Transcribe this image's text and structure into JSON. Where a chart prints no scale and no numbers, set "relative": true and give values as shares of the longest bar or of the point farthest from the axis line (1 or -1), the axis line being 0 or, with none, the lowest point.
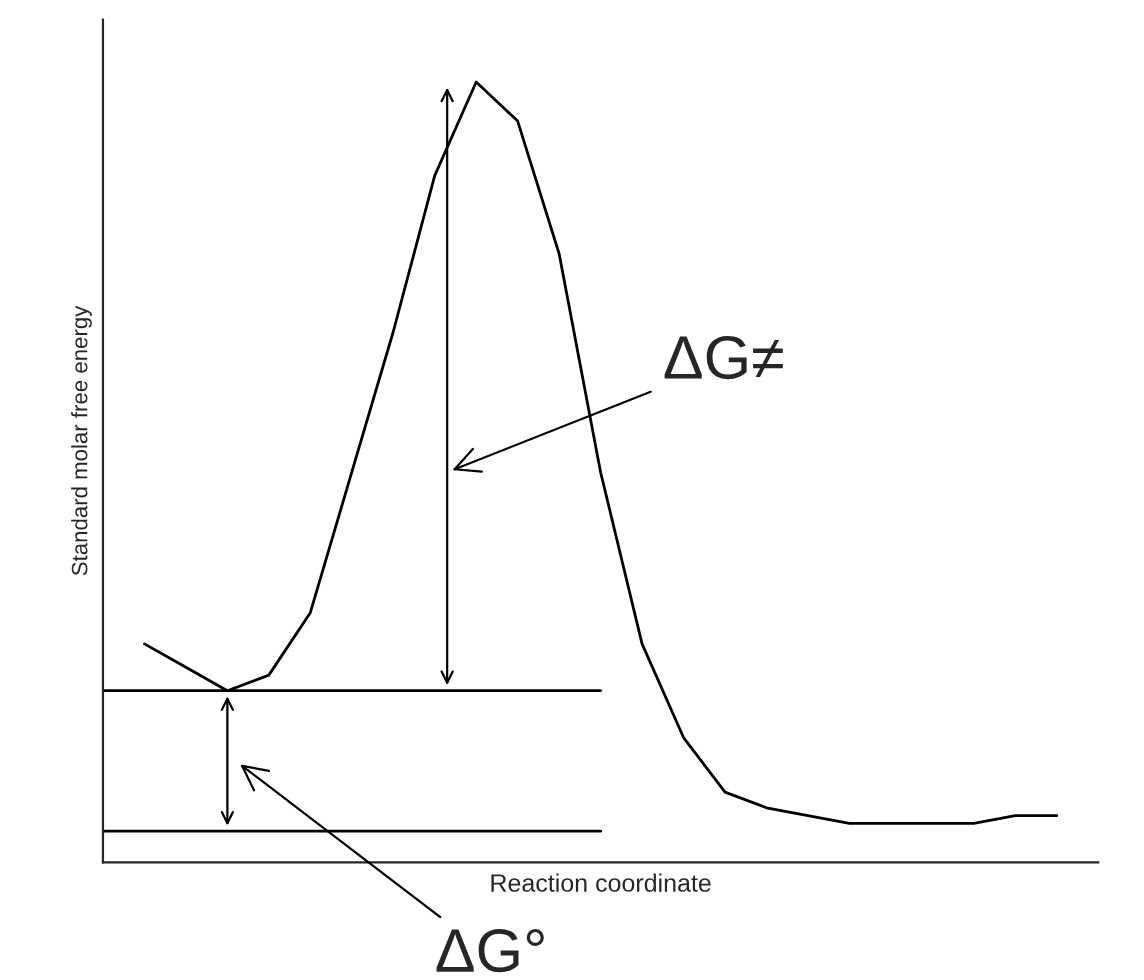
{
  "chart_data": {
    "type": "line",
    "relative": true,
    "xlabel": "Reaction coordinate",
    "ylabel": "Standard molar free energy",
    "categories": [
      null,
      null,
      null,
      null,
      null,
      null,
      null,
      null,
      null,
      null,
      null,
      null,
      null,
      null,
      null,
      null,
      null,
      null,
      null,
      null,
      null,
      null,
      null
    ],
    "series": [
      {
        "color": "#000000",
        "values": [
          0.28,
          0.25,
          0.22,
          0.24,
          0.32,
          0.5,
          0.68,
          0.88,
          1.0,
          0.95,
          0.78,
          0.5,
          0.28,
          0.16,
          0.09,
          0.07,
          0.06,
          0.05,
          0.05,
          0.05,
          0.05,
          0.06,
          0.06
        ]
      }
    ],
    "ref_lines": [
      {
        "axis": "y",
        "value": 0.22,
        "color": "#000000"
      },
      {
        "axis": "y",
        "value": 0.04,
        "color": "#000000"
      }
    ],
    "annotations": [
      "ΔG≠",
      "ΔG°"
    ]
  }
}
